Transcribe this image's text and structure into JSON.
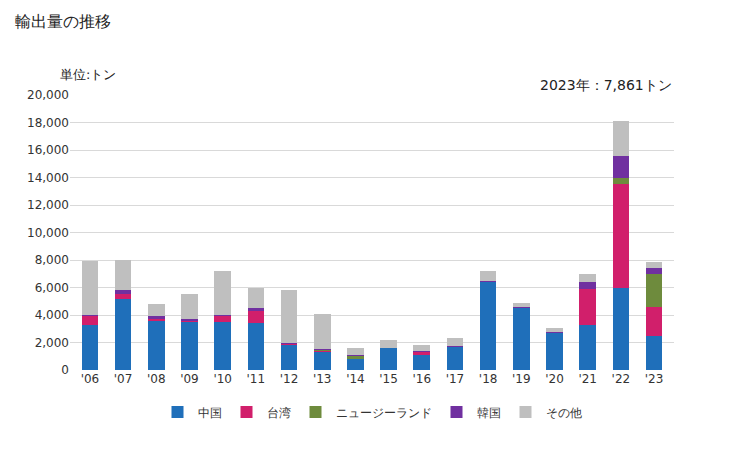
{
  "chart_data": {
    "type": "bar",
    "stacked": true,
    "title": "輸出量の推移",
    "y_label": "単位:トン",
    "annotation": "2023年：7,861トン",
    "categories": [
      "'06",
      "'07",
      "'08",
      "'09",
      "'10",
      "'11",
      "'12",
      "'13",
      "'14",
      "'15",
      "'16",
      "'17",
      "'18",
      "'19",
      "'20",
      "'21",
      "'22",
      "'23"
    ],
    "series": [
      {
        "name": "中国",
        "color": "#1f6fba",
        "values": [
          3300,
          5200,
          3600,
          3500,
          3500,
          3400,
          1800,
          1300,
          800,
          1600,
          1100,
          1700,
          6400,
          4500,
          2700,
          3300,
          6000,
          2500
        ]
      },
      {
        "name": "台湾",
        "color": "#d11f6b",
        "values": [
          600,
          300,
          100,
          100,
          400,
          900,
          100,
          50,
          0,
          0,
          200,
          0,
          0,
          0,
          0,
          2600,
          7500,
          2100
        ]
      },
      {
        "name": "ニュージーランド",
        "color": "#6e8b3d",
        "values": [
          0,
          0,
          0,
          0,
          0,
          0,
          0,
          100,
          200,
          0,
          0,
          0,
          0,
          0,
          0,
          0,
          500,
          2400
        ]
      },
      {
        "name": "韓国",
        "color": "#7030a0",
        "values": [
          100,
          300,
          200,
          100,
          100,
          200,
          100,
          50,
          100,
          0,
          50,
          50,
          100,
          100,
          50,
          500,
          1600,
          400
        ]
      },
      {
        "name": "その他",
        "color": "#bfbfbf",
        "values": [
          3900,
          2200,
          900,
          1800,
          3200,
          1500,
          3800,
          2600,
          500,
          600,
          500,
          550,
          700,
          300,
          300,
          600,
          2500,
          461
        ]
      }
    ],
    "ylim": [
      0,
      20000
    ],
    "yticks": [
      0,
      {
        "value": 2000,
        "label": "2,000"
      },
      {
        "value": 4000,
        "label": "4,000"
      },
      {
        "value": 6000,
        "label": "6,000"
      },
      {
        "value": 8000,
        "label": "8,000"
      },
      {
        "value": 10000,
        "label": "10,000"
      },
      {
        "value": 12000,
        "label": "12,000"
      },
      {
        "value": 14000,
        "label": "14,000"
      },
      {
        "value": 16000,
        "label": "16,000"
      },
      {
        "value": 18000,
        "label": "18,000"
      },
      {
        "value": 20000,
        "label": "20,000"
      }
    ],
    "grid": true,
    "legend": "bottom"
  }
}
